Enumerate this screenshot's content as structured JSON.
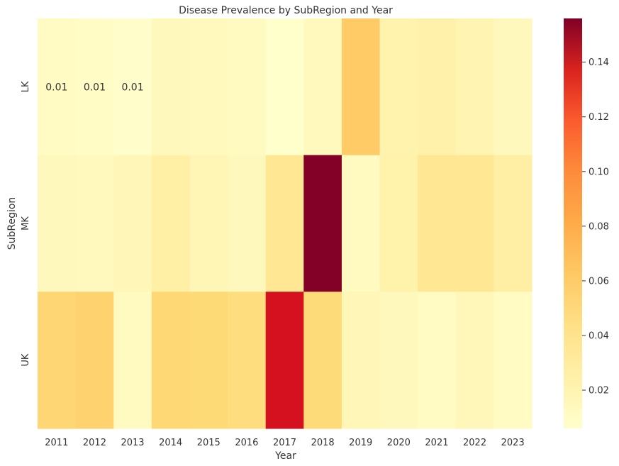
{
  "chart_data": {
    "type": "heatmap",
    "title": "Disease Prevalence by SubRegion and Year",
    "xlabel": "Year",
    "ylabel": "SubRegion",
    "x": [
      "2011",
      "2012",
      "2013",
      "2014",
      "2015",
      "2016",
      "2017",
      "2018",
      "2019",
      "2020",
      "2021",
      "2022",
      "2023"
    ],
    "y": [
      "LK",
      "MK",
      "UK"
    ],
    "values": [
      [
        0.01,
        0.009,
        0.007,
        0.013,
        0.012,
        0.011,
        0.006,
        0.012,
        0.05,
        0.019,
        0.021,
        0.017,
        0.013
      ],
      [
        0.013,
        0.012,
        0.015,
        0.022,
        0.016,
        0.013,
        0.03,
        0.155,
        0.011,
        0.02,
        0.03,
        0.03,
        0.023
      ],
      [
        0.045,
        0.047,
        0.011,
        0.044,
        0.043,
        0.04,
        0.125,
        0.042,
        0.015,
        0.013,
        0.01,
        0.014,
        0.01
      ]
    ],
    "annotations": [
      {
        "row": 0,
        "col": 0,
        "text": "0.01"
      },
      {
        "row": 0,
        "col": 1,
        "text": "0.01"
      },
      {
        "row": 0,
        "col": 2,
        "text": "0.01"
      }
    ],
    "colorbar": {
      "colormap": "YlOrRd",
      "vmin": 0.006,
      "vmax": 0.156,
      "ticks": [
        0.02,
        0.04,
        0.06,
        0.08,
        0.1,
        0.12,
        0.14
      ],
      "tick_labels": [
        "0.02",
        "0.04",
        "0.06",
        "0.08",
        "0.10",
        "0.12",
        "0.14"
      ]
    }
  }
}
